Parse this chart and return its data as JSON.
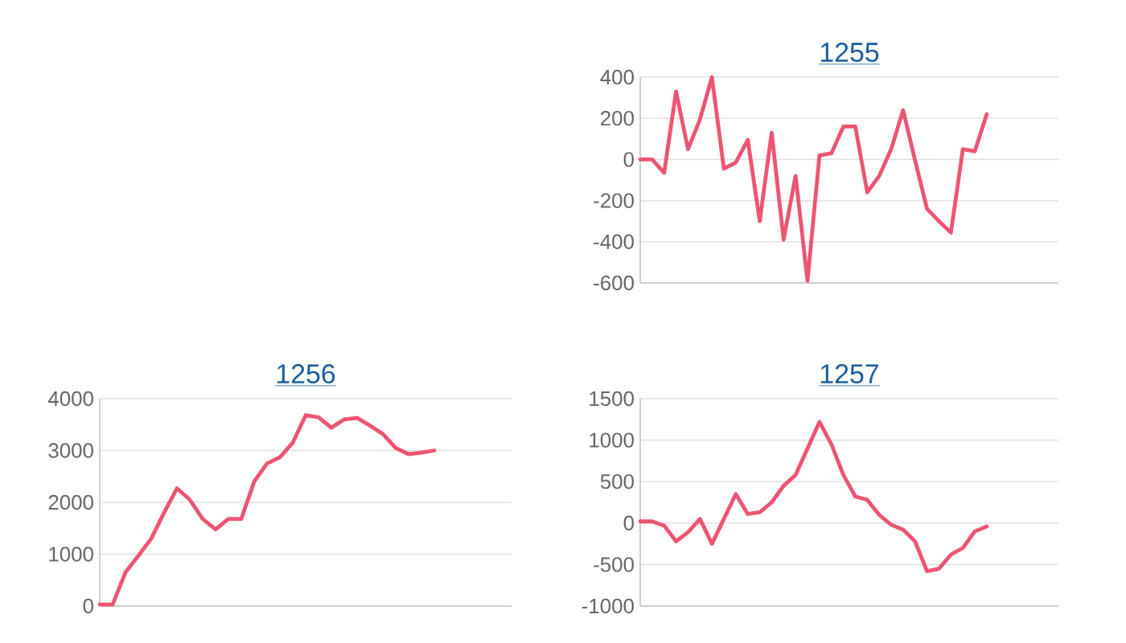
{
  "chart_data": [
    {
      "type": "line",
      "title": "1255",
      "categories": [
        null,
        null,
        null,
        null,
        null,
        null,
        null,
        null,
        null,
        null,
        null,
        null,
        null,
        null,
        null,
        null,
        null,
        null,
        null,
        null,
        null,
        null,
        null,
        null,
        null,
        null,
        null,
        null,
        null,
        null,
        null,
        null,
        null,
        null,
        null,
        null
      ],
      "values": [
        0,
        0,
        -65,
        330,
        50,
        195,
        400,
        -45,
        -15,
        95,
        -300,
        130,
        -390,
        -80,
        -590,
        20,
        30,
        160,
        160,
        -160,
        -80,
        50,
        240,
        -5,
        -240,
        -300,
        -355,
        50,
        40,
        220,
        null,
        null,
        null,
        null,
        null,
        null
      ],
      "color": "#ee5472",
      "ylim": [
        -600,
        400
      ],
      "yticks": [
        -600,
        -400,
        -200,
        0,
        200,
        400
      ],
      "grid": "y",
      "tick_labels": "y"
    },
    {
      "type": "line",
      "title": "1256",
      "categories": [
        null,
        null,
        null,
        null,
        null,
        null,
        null,
        null,
        null,
        null,
        null,
        null,
        null,
        null,
        null,
        null,
        null,
        null,
        null,
        null,
        null,
        null,
        null,
        null,
        null,
        null,
        null,
        null,
        null,
        null,
        null,
        null,
        null
      ],
      "values": [
        30,
        30,
        650,
        970,
        1300,
        1800,
        2270,
        2050,
        1680,
        1480,
        1680,
        1680,
        2400,
        2750,
        2870,
        3150,
        3680,
        3640,
        3440,
        3600,
        3630,
        3480,
        3320,
        3050,
        2930,
        2960,
        3000,
        null,
        null,
        null,
        null,
        null,
        null
      ],
      "color": "#ee5472",
      "ylim": [
        0,
        4000
      ],
      "yticks": [
        0,
        1000,
        2000,
        3000,
        4000
      ],
      "grid": "y",
      "tick_labels": "y"
    },
    {
      "type": "line",
      "title": "1257",
      "categories": [
        null,
        null,
        null,
        null,
        null,
        null,
        null,
        null,
        null,
        null,
        null,
        null,
        null,
        null,
        null,
        null,
        null,
        null,
        null,
        null,
        null,
        null,
        null,
        null,
        null,
        null,
        null,
        null,
        null,
        null,
        null,
        null,
        null,
        null,
        null,
        null
      ],
      "values": [
        20,
        20,
        -30,
        -220,
        -110,
        50,
        -250,
        50,
        350,
        110,
        130,
        250,
        450,
        580,
        900,
        1220,
        950,
        580,
        320,
        280,
        100,
        -20,
        -80,
        -220,
        -580,
        -550,
        -380,
        -300,
        -100,
        -40,
        null,
        null,
        null,
        null,
        null,
        null
      ],
      "color": "#ee5472",
      "ylim": [
        -1000,
        1500
      ],
      "yticks": [
        -1000,
        -500,
        0,
        500,
        1000,
        1500
      ],
      "grid": "y",
      "tick_labels": "y"
    }
  ]
}
